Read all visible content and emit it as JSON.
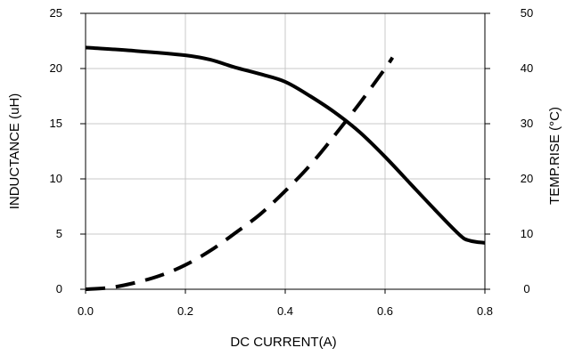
{
  "chart_data": {
    "type": "line",
    "title": "",
    "xlabel": "DC CURRENT(A)",
    "ylabel": "INDUCTANCE (uH)",
    "y2label": "TEMP.RISE (°C)",
    "xlim": [
      0,
      0.8
    ],
    "ylim": [
      0,
      25
    ],
    "y2lim": [
      0,
      50
    ],
    "xticks": [
      "0.0",
      "0.2",
      "0.4",
      "0.6",
      "0.8"
    ],
    "yticks": [
      "0",
      "5",
      "10",
      "15",
      "20",
      "25"
    ],
    "y2ticks": [
      "0",
      "10",
      "20",
      "30",
      "40",
      "50"
    ],
    "grid": true,
    "series": [
      {
        "axis": "left",
        "style": "solid",
        "color": "#000000",
        "x": [
          0.0,
          0.1,
          0.2,
          0.25,
          0.3,
          0.35,
          0.4,
          0.45,
          0.5,
          0.55,
          0.6,
          0.65,
          0.7,
          0.75,
          0.77,
          0.8
        ],
        "y": [
          21.9,
          21.6,
          21.2,
          20.8,
          20.1,
          19.5,
          18.8,
          17.5,
          16.0,
          14.2,
          12.0,
          9.6,
          7.2,
          4.9,
          4.4,
          4.2
        ]
      },
      {
        "axis": "right",
        "style": "dashed",
        "color": "#000000",
        "x": [
          0.0,
          0.05,
          0.1,
          0.15,
          0.2,
          0.25,
          0.3,
          0.35,
          0.4,
          0.45,
          0.5,
          0.55,
          0.6,
          0.615
        ],
        "y": [
          0,
          0.3,
          1.2,
          2.5,
          4.4,
          7.0,
          10.2,
          13.6,
          17.8,
          22.5,
          28.0,
          33.8,
          40.0,
          42.0
        ]
      }
    ]
  }
}
